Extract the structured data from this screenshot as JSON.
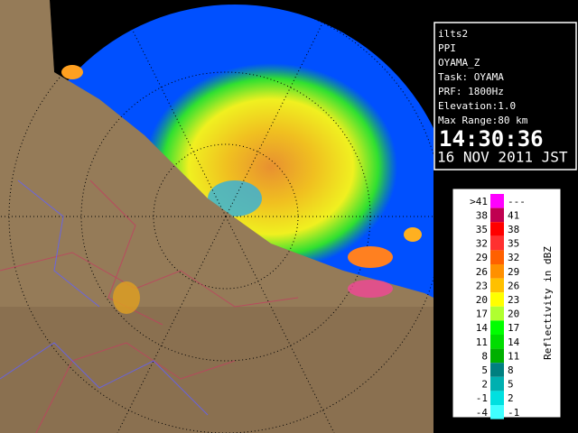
{
  "info": {
    "lines": [
      "ilts2",
      "PPI",
      "OYAMA_Z",
      "Task: OYAMA",
      "PRF: 1800Hz",
      "Elevation:1.0",
      "Max Range:80 km"
    ],
    "time": "14:30:36",
    "date": "16 NOV 2011 JST"
  },
  "legend": {
    "title": "Reflectivity in dBZ",
    "rows": [
      {
        "low": ">41",
        "high": "---",
        "color": "#ff00ff"
      },
      {
        "low": "38",
        "high": "41",
        "color": "#c00050"
      },
      {
        "low": "35",
        "high": "38",
        "color": "#ff0000"
      },
      {
        "low": "32",
        "high": "35",
        "color": "#ff3030"
      },
      {
        "low": "29",
        "high": "32",
        "color": "#ff6000"
      },
      {
        "low": "26",
        "high": "29",
        "color": "#ff9000"
      },
      {
        "low": "23",
        "high": "26",
        "color": "#ffc000"
      },
      {
        "low": "20",
        "high": "23",
        "color": "#ffff00"
      },
      {
        "low": "17",
        "high": "20",
        "color": "#b0ff30"
      },
      {
        "low": "14",
        "high": "17",
        "color": "#00ff00"
      },
      {
        "low": "11",
        "high": "14",
        "color": "#00dd00"
      },
      {
        "low": "8",
        "high": "11",
        "color": "#00b000"
      },
      {
        "low": "5",
        "high": "8",
        "color": "#008080"
      },
      {
        "low": "2",
        "high": "5",
        "color": "#00b0b0"
      },
      {
        "low": "-1",
        "high": "2",
        "color": "#00e0e0"
      },
      {
        "low": "-4",
        "high": "-1",
        "color": "#40ffff"
      }
    ]
  }
}
